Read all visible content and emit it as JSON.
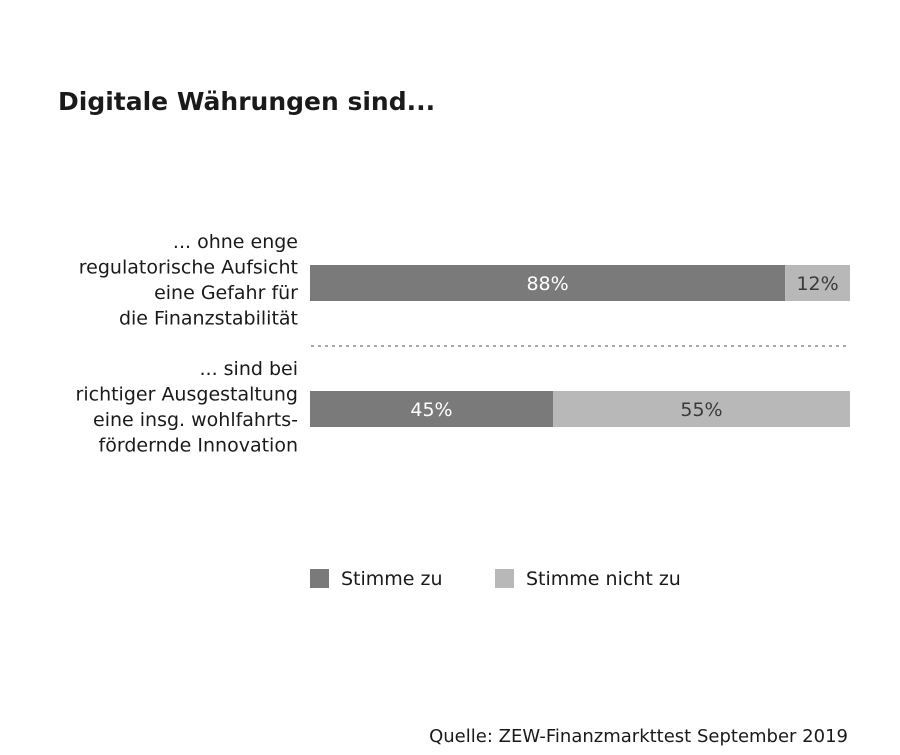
{
  "chart_data": {
    "type": "bar",
    "stacked": true,
    "orientation": "horizontal",
    "percent_scale": true,
    "title": "Digitale Währungen sind...",
    "categories": [
      [
        "... ohne enge",
        "regulatorische Aufsicht",
        "eine Gefahr für",
        "die Finanzstabilität"
      ],
      [
        "... sind bei",
        "richtiger Ausgestaltung",
        "eine insg. wohlfahrts-",
        "fördernde Innovation"
      ]
    ],
    "series": [
      {
        "name": "Stimme zu",
        "values": [
          88,
          45
        ],
        "labels": [
          "88%",
          "45%"
        ],
        "color": "#7a7a7a",
        "label_color": "#ffffff"
      },
      {
        "name": "Stimme nicht zu",
        "values": [
          12,
          55
        ],
        "labels": [
          "12%",
          "55%"
        ],
        "color": "#b8b8b8",
        "label_color": "#3a3a3a"
      }
    ],
    "legend_position": "bottom",
    "source": "Quelle: ZEW-Finanzmarkttest September 2019",
    "grid": false
  }
}
